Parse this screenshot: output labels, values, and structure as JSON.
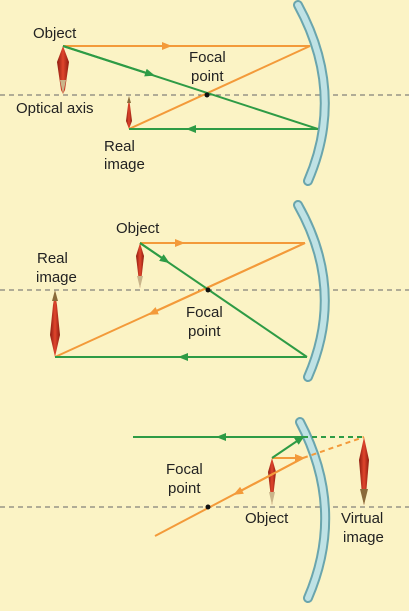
{
  "panel1": {
    "object_label": "Object",
    "focal_label_line1": "Focal",
    "focal_label_line2": "point",
    "axis_label": "Optical axis",
    "image_label_line1": "Real",
    "image_label_line2": "image"
  },
  "panel2": {
    "object_label": "Object",
    "image_label_line1": "Real",
    "image_label_line2": "image",
    "focal_label_line1": "Focal",
    "focal_label_line2": "point"
  },
  "panel3": {
    "focal_label_line1": "Focal",
    "focal_label_line2": "point",
    "object_label": "Object",
    "image_label_line1": "Virtual",
    "image_label_line2": "image"
  },
  "colors": {
    "background": "#fbf3c5",
    "ray_orange": "#f39a3a",
    "ray_green": "#2e9b45",
    "mirror": "#a9d6d9",
    "mirror_edge": "#6aa5ad",
    "pen_red": "#c8321e",
    "axis": "#666666"
  }
}
